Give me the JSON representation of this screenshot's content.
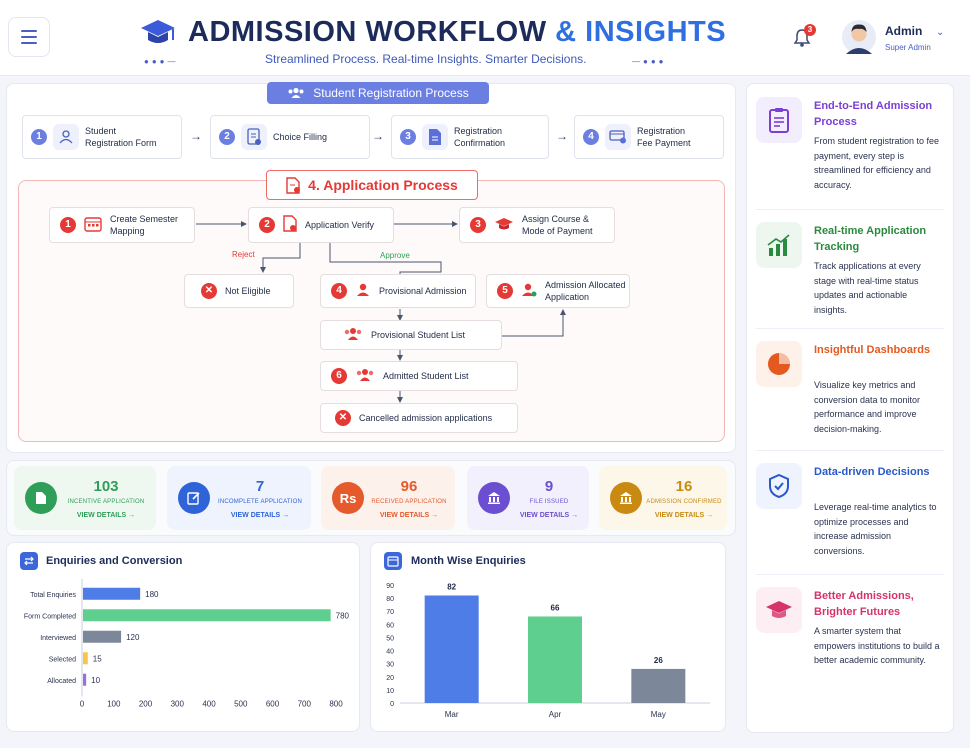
{
  "header": {
    "title_main": "ADMISSION WORKFLOW",
    "title_amp": "& INSIGHTS",
    "subtitle": "Streamlined Process. Real-time Insights. Smarter Decisions.",
    "notification_count": "3",
    "user_name": "Admin",
    "user_role": "Super Admin"
  },
  "registration": {
    "title": "Student Registration Process",
    "steps": [
      {
        "num": "1",
        "label": "Student Registration Form",
        "icon": "users-form-icon"
      },
      {
        "num": "2",
        "label": "Choice Filling",
        "icon": "checklist-icon"
      },
      {
        "num": "3",
        "label": "Registration Confirmation",
        "icon": "document-icon"
      },
      {
        "num": "4",
        "label": "Registration Fee Payment",
        "icon": "card-payment-icon"
      }
    ]
  },
  "application": {
    "title": "4. Application Process",
    "reject_label": "Reject",
    "approve_label": "Approve",
    "nodes": {
      "semester": {
        "num": "1",
        "label": "Create Semester Mapping"
      },
      "verify": {
        "num": "2",
        "label": "Application Verify"
      },
      "course": {
        "num": "3",
        "label": "Assign Course & Mode of Payment"
      },
      "not_eligible": {
        "label": "Not Eligible"
      },
      "provisional": {
        "num": "4",
        "label": "Provisional Admission"
      },
      "allocated": {
        "num": "5",
        "label": "Admission Allocated Application"
      },
      "prov_list": {
        "label": "Provisional Student List"
      },
      "admitted": {
        "num": "6",
        "label": "Admitted Student List"
      },
      "cancelled": {
        "label": "Cancelled admission applications"
      }
    }
  },
  "stats": [
    {
      "value": "103",
      "label": "INCENTIVE APPLICATION",
      "link": "VIEW DETAILS →",
      "color": "#2e9e58",
      "bg": "#eef8f1",
      "icon": "document-icon"
    },
    {
      "value": "7",
      "label": "INCOMPLETE APPLICATION",
      "link": "VIEW DETAILS →",
      "color": "#2f63d8",
      "bg": "#eef3fd",
      "icon": "edit-icon"
    },
    {
      "value": "96",
      "label": "RECEIVED APPLICATION",
      "link": "VIEW DETAILS →",
      "color": "#e45a2c",
      "bg": "#fdf1ec",
      "icon": "rupee-icon",
      "icon_text": "Rs"
    },
    {
      "value": "9",
      "label": "FILE ISSUED",
      "link": "VIEW DETAILS →",
      "color": "#6b4fd0",
      "bg": "#f3f0fd",
      "icon": "bank-icon"
    },
    {
      "value": "16",
      "label": "ADMISSION CONFIRMED",
      "link": "VIEW DETAILS →",
      "color": "#c98a12",
      "bg": "#fdf7ea",
      "icon": "bank-icon"
    }
  ],
  "enquiries_chart": {
    "title": "Enquiries and Conversion",
    "chart_data": {
      "type": "bar",
      "orientation": "horizontal",
      "categories": [
        "Total Enquiries",
        "Form Completed",
        "Interviewed",
        "Selected",
        "Allocated"
      ],
      "values": [
        180,
        780,
        120,
        15,
        10
      ],
      "colors": [
        "#4f7de8",
        "#5fcf8f",
        "#7d879a",
        "#f6c54a",
        "#9b6fe0"
      ],
      "xlim": [
        0,
        800
      ],
      "xticks": [
        "0",
        "100",
        "200",
        "300",
        "400",
        "500",
        "600",
        "700",
        "800"
      ]
    }
  },
  "month_chart": {
    "title": "Month Wise Enquiries",
    "chart_data": {
      "type": "bar",
      "categories": [
        "Mar",
        "Apr",
        "May"
      ],
      "values": [
        82,
        66,
        26
      ],
      "colors": [
        "#4f7de8",
        "#5fcf8f",
        "#7d879a"
      ],
      "ylim": [
        0,
        90
      ],
      "yticks": [
        "0",
        "10",
        "20",
        "30",
        "40",
        "50",
        "60",
        "70",
        "80",
        "90"
      ]
    }
  },
  "sidebar": [
    {
      "title": "End-to-End Admission Process",
      "desc": "From student registration to fee payment, every step is streamlined for efficiency and accuracy.",
      "color": "#7b3fd6",
      "bg": "#f3eefd",
      "icon": "clipboard-icon"
    },
    {
      "title": "Real-time Application Tracking",
      "desc": "Track applications at every stage with real-time status updates and actionable insights.",
      "color": "#2a8a3e",
      "bg": "#eef7ef",
      "icon": "bar-growth-icon"
    },
    {
      "title": "Insightful Dashboards",
      "desc": "Visualize key metrics and conversion data to monitor performance and improve decision-making.",
      "color": "#e4591f",
      "bg": "#fdf1ea",
      "icon": "pie-chart-icon"
    },
    {
      "title": "Data-driven Decisions",
      "desc": "Leverage real-time analytics to optimize processes and increase admission conversions.",
      "color": "#2958c9",
      "bg": "#eef3fd",
      "icon": "shield-check-icon"
    },
    {
      "title": "Better Admissions, Brighter Futures",
      "desc": "A smarter system that empowers institutions to build a better academic community.",
      "color": "#d6336c",
      "bg": "#fdeef3",
      "icon": "graduation-cap-icon"
    }
  ]
}
